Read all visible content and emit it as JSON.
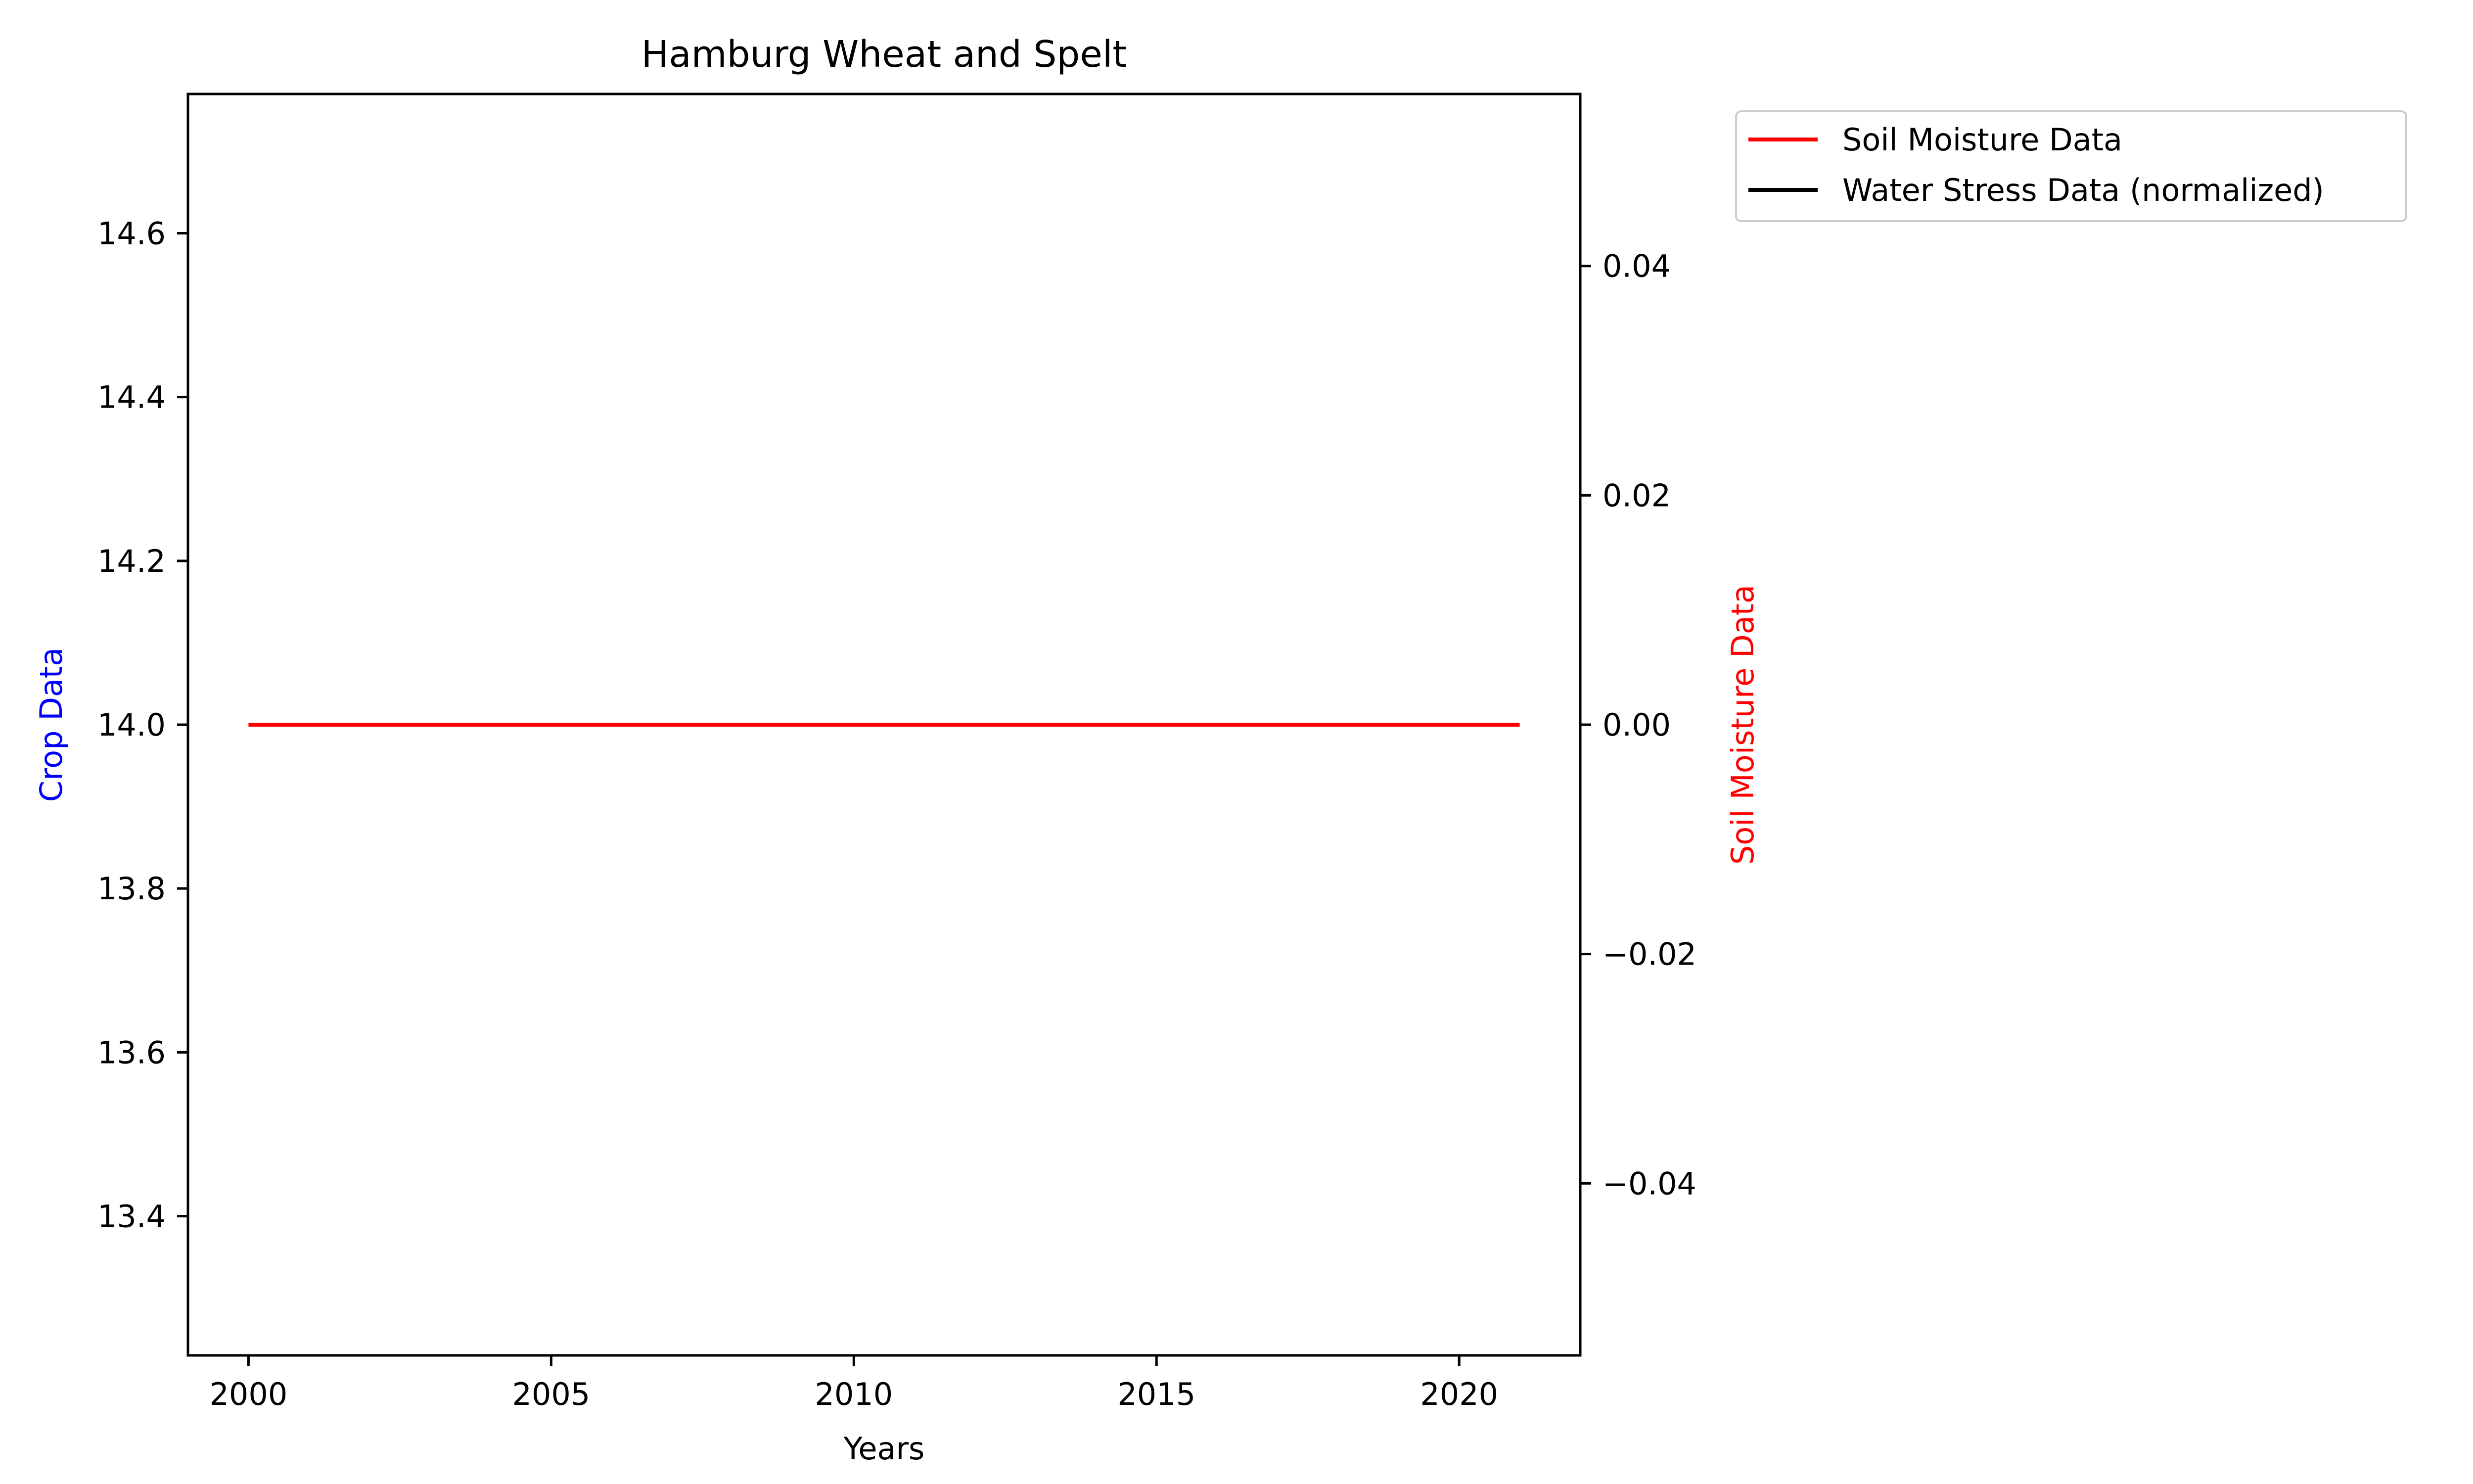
{
  "chart_data": {
    "type": "line",
    "title": "Hamburg Wheat and Spelt",
    "xlabel": "Years",
    "ylabel_left": "Crop Data",
    "ylabel_right": "Soil Moisture Data",
    "xlim": [
      1999,
      2022
    ],
    "ylim_left": [
      13.23,
      14.77
    ],
    "ylim_right": [
      -0.055,
      0.055
    ],
    "x_ticks": [
      2000,
      2005,
      2010,
      2015,
      2020
    ],
    "x_tick_labels": [
      "2000",
      "2005",
      "2010",
      "2015",
      "2020"
    ],
    "y_left_ticks": [
      13.4,
      13.6,
      13.8,
      14.0,
      14.2,
      14.4,
      14.6
    ],
    "y_left_tick_labels": [
      "13.4",
      "13.6",
      "13.8",
      "14.0",
      "14.2",
      "14.4",
      "14.6"
    ],
    "y_right_ticks": [
      -0.04,
      -0.02,
      0.0,
      0.02,
      0.04
    ],
    "y_right_tick_labels": [
      "−0.04",
      "−0.02",
      "0.00",
      "0.02",
      "0.04"
    ],
    "legend_position": "outside-top-right",
    "grid": false,
    "series": [
      {
        "name": "Soil Moisture Data",
        "axis": "right",
        "color": "#ff0000",
        "x": [
          2000,
          2021
        ],
        "y": [
          0.0,
          0.0
        ]
      },
      {
        "name": "Water Stress Data (normalized)",
        "axis": "right",
        "color": "#000000",
        "x": [],
        "y": []
      }
    ],
    "colors": {
      "left_axis_label": "#0000ff",
      "right_axis_label": "#ff0000"
    }
  }
}
